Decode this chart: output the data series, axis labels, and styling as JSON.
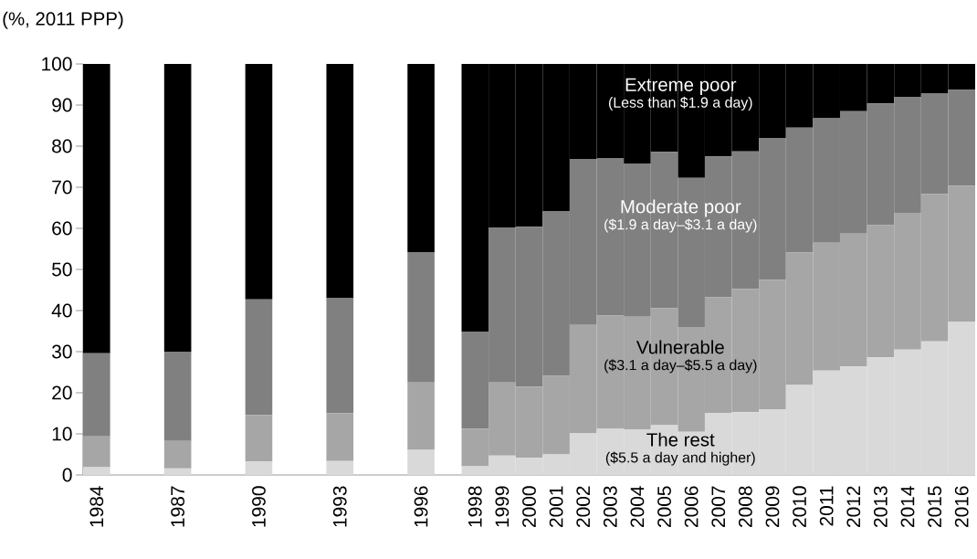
{
  "chart_data": {
    "type": "bar",
    "stacked": true,
    "ylabel": "(%, 2011 PPP)",
    "categories": [
      "1984",
      null,
      null,
      "1987",
      null,
      null,
      "1990",
      null,
      null,
      "1993",
      null,
      null,
      "1996",
      null,
      "1998",
      "1999",
      "2000",
      "2001",
      "2002",
      "2003",
      "2004",
      "2005",
      "2006",
      "2007",
      "2008",
      "2009",
      "2010",
      "2011",
      "2012",
      "2013",
      "2014",
      "2015",
      "2016"
    ],
    "series": [
      {
        "name": "The rest",
        "color": "#d9d9d9",
        "values": [
          1.9,
          null,
          null,
          1.6,
          null,
          null,
          3.3,
          null,
          null,
          3.4,
          null,
          null,
          6.1,
          null,
          2.1,
          4.7,
          4.2,
          5.0,
          10.1,
          11.2,
          11.1,
          12.1,
          10.5,
          15.1,
          15.3,
          16.0,
          21.9,
          25.4,
          26.4,
          28.6,
          30.5,
          32.5,
          37.2
        ]
      },
      {
        "name": "Vulnerable",
        "color": "#a6a6a6",
        "values": [
          7.5,
          null,
          null,
          6.7,
          null,
          null,
          11.3,
          null,
          null,
          11.6,
          null,
          null,
          16.4,
          null,
          9.2,
          17.8,
          17.3,
          19.1,
          26.4,
          27.6,
          27.4,
          28.5,
          25.5,
          28.1,
          30.0,
          31.5,
          32.2,
          31.1,
          32.3,
          32.2,
          33.3,
          35.9,
          33.2
        ]
      },
      {
        "name": "Moderate poor",
        "color": "#808080",
        "values": [
          20.2,
          null,
          null,
          21.6,
          null,
          null,
          28.1,
          null,
          null,
          28.0,
          null,
          null,
          31.7,
          null,
          23.6,
          37.7,
          38.9,
          40.0,
          40.3,
          38.2,
          37.3,
          38.0,
          36.3,
          34.3,
          33.4,
          34.5,
          30.4,
          30.3,
          29.8,
          29.6,
          28.2,
          24.4,
          23.3
        ]
      },
      {
        "name": "Extreme poor",
        "color": "#000000",
        "values": [
          70.4,
          null,
          null,
          70.1,
          null,
          null,
          57.3,
          null,
          null,
          57.0,
          null,
          null,
          45.8,
          null,
          65.1,
          39.8,
          39.6,
          35.9,
          23.2,
          23.0,
          24.2,
          21.4,
          27.7,
          22.5,
          21.3,
          18.0,
          15.5,
          13.2,
          11.5,
          9.6,
          8.0,
          7.2,
          6.3
        ]
      }
    ],
    "annotations": [
      "($5.5 a day and higher)",
      "($3.1 a day–$5.5 a day)",
      "($1.9 a day–$3.1 a day)",
      "(Less than $1.9 a day)"
    ],
    "ylim": [
      0,
      100
    ],
    "yticks": [
      0,
      10,
      20,
      30,
      40,
      50,
      60,
      70,
      80,
      90,
      100
    ],
    "grid": false,
    "legend": false
  }
}
